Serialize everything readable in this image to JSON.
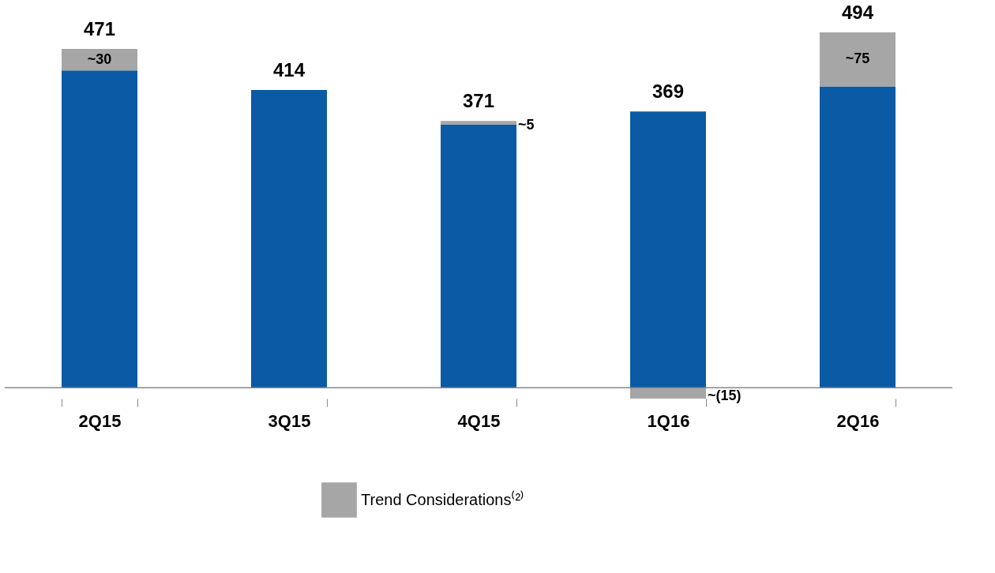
{
  "chart_data": {
    "type": "bar",
    "stacked": true,
    "categories": [
      "2Q15",
      "3Q15",
      "4Q15",
      "1Q16",
      "2Q16"
    ],
    "series": [
      {
        "color": "#0b5aa5",
        "values": [
          441,
          414,
          366,
          384,
          419
        ]
      },
      {
        "name": "Trend Considerations⁽²⁾",
        "color": "#a6a6a6",
        "values": [
          30,
          null,
          5,
          -15,
          75
        ],
        "value_labels": [
          "~30",
          null,
          "~5",
          "~(15)",
          "~75"
        ]
      }
    ],
    "totals": [
      "471",
      "414",
      "371",
      "369",
      "494"
    ],
    "legend": "bottom",
    "grid": false
  }
}
